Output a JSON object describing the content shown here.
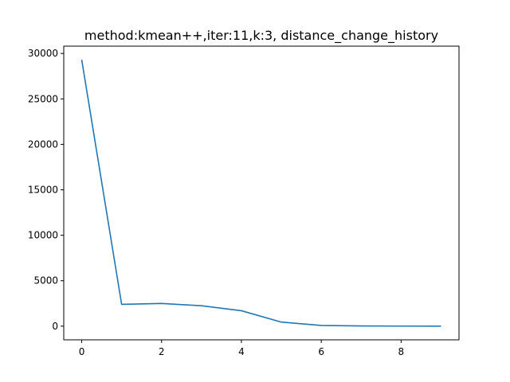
{
  "chart_data": {
    "type": "line",
    "title": "method:kmean++,iter:11,k:3, distance_change_history",
    "xlabel": "",
    "ylabel": "",
    "xlim": [
      -0.45,
      9.45
    ],
    "ylim": [
      -1500,
      30800
    ],
    "grid": false,
    "x_ticks": [
      0,
      2,
      4,
      6,
      8
    ],
    "y_ticks": [
      0,
      5000,
      10000,
      15000,
      20000,
      25000,
      30000
    ],
    "x_tick_labels": [
      "0",
      "2",
      "4",
      "6",
      "8"
    ],
    "y_tick_labels": [
      "0",
      "5000",
      "10000",
      "15000",
      "20000",
      "25000",
      "30000"
    ],
    "series": [
      {
        "color": "#1f77b4",
        "x": [
          0,
          1,
          2,
          3,
          4,
          5,
          6,
          7,
          8,
          9
        ],
        "values": [
          29300,
          2400,
          2500,
          2250,
          1700,
          450,
          80,
          30,
          10,
          5
        ]
      }
    ]
  }
}
